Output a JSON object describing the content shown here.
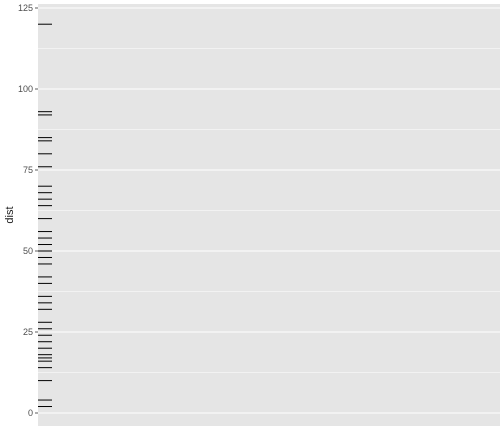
{
  "chart_data": {
    "type": "rug",
    "title": "",
    "xlabel": "",
    "ylabel": "dist",
    "ylim": [
      -4,
      126
    ],
    "y_ticks": [
      0,
      25,
      50,
      75,
      100,
      125
    ],
    "y_tick_labels": [
      "0",
      "25",
      "50",
      "75",
      "100",
      "125"
    ],
    "grid": true,
    "background": "#e5e5e5",
    "gridline_color": "#ffffff",
    "rug_color": "#000000",
    "values": [
      2,
      4,
      10,
      14,
      16,
      17,
      18,
      20,
      22,
      24,
      26,
      28,
      32,
      34,
      36,
      40,
      42,
      46,
      48,
      50,
      52,
      54,
      56,
      60,
      64,
      66,
      68,
      70,
      76,
      80,
      84,
      85,
      92,
      93,
      120
    ]
  }
}
